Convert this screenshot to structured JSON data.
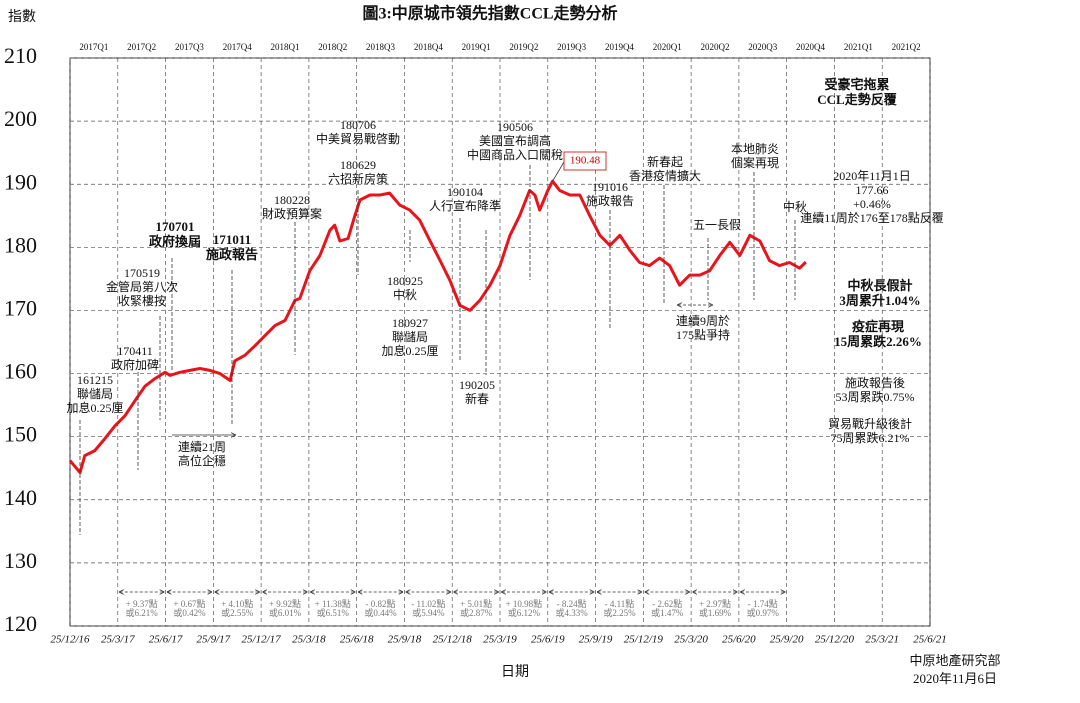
{
  "chart_data": {
    "type": "line",
    "title": "圖3:中原城市領先指數CCL走勢分析",
    "y_label": "指數",
    "x_label": "日期",
    "source": [
      "中原地產研究部",
      "2020年11月6日"
    ],
    "ylim": [
      120,
      210
    ],
    "yticks": [
      120,
      130,
      140,
      150,
      160,
      170,
      180,
      190,
      200,
      210
    ],
    "xlim": [
      0,
      18
    ],
    "xticks": [
      {
        "value": 0,
        "label": "25/12/16"
      },
      {
        "value": 1,
        "label": "25/3/17"
      },
      {
        "value": 2,
        "label": "25/6/17"
      },
      {
        "value": 3,
        "label": "25/9/17"
      },
      {
        "value": 4,
        "label": "25/12/17"
      },
      {
        "value": 5,
        "label": "25/3/18"
      },
      {
        "value": 6,
        "label": "25/6/18"
      },
      {
        "value": 7,
        "label": "25/9/18"
      },
      {
        "value": 8,
        "label": "25/12/18"
      },
      {
        "value": 9,
        "label": "25/3/19"
      },
      {
        "value": 10,
        "label": "25/6/19"
      },
      {
        "value": 11,
        "label": "25/9/19"
      },
      {
        "value": 12,
        "label": "25/12/19"
      },
      {
        "value": 13,
        "label": "25/3/20"
      },
      {
        "value": 14,
        "label": "25/6/20"
      },
      {
        "value": 15,
        "label": "25/9/20"
      },
      {
        "value": 16,
        "label": "25/12/20"
      },
      {
        "value": 17,
        "label": "25/3/21"
      },
      {
        "value": 18,
        "label": "25/6/21"
      }
    ],
    "quarters": [
      "2017Q1",
      "2017Q2",
      "2017Q3",
      "2017Q4",
      "2018Q1",
      "2018Q2",
      "2018Q3",
      "2018Q4",
      "2019Q1",
      "2019Q2",
      "2019Q3",
      "2019Q4",
      "2020Q1",
      "2020Q2",
      "2020Q3",
      "2020Q4",
      "2021Q1",
      "2021Q2"
    ],
    "grid": true,
    "series": [
      {
        "color": "#e8141c",
        "x": [
          0,
          0.21,
          0.31,
          0.52,
          0.73,
          0.94,
          1.15,
          1.36,
          1.57,
          1.78,
          1.99,
          2.09,
          2.3,
          2.51,
          2.72,
          2.93,
          3.14,
          3.35,
          3.45,
          3.66,
          3.87,
          4.08,
          4.29,
          4.5,
          4.71,
          4.81,
          5.02,
          5.23,
          5.44,
          5.54,
          5.65,
          5.82,
          5.96,
          6.07,
          6.28,
          6.49,
          6.69,
          6.9,
          7.11,
          7.32,
          7.53,
          7.74,
          7.95,
          8.16,
          8.37,
          8.58,
          8.79,
          9.0,
          9.21,
          9.41,
          9.62,
          9.73,
          9.83,
          10.0,
          10.1,
          10.25,
          10.46,
          10.67,
          10.88,
          11.09,
          11.3,
          11.51,
          11.72,
          11.92,
          12.13,
          12.34,
          12.55,
          12.76,
          12.97,
          13.18,
          13.39,
          13.6,
          13.81,
          14.02,
          14.23,
          14.44,
          14.64,
          14.85,
          15.06,
          15.27,
          15.4
        ],
        "values": [
          146.2,
          144.3,
          147,
          147.8,
          149.7,
          151.7,
          153.3,
          155.7,
          158,
          159.2,
          160.2,
          159.7,
          160.2,
          160.5,
          160.8,
          160.5,
          160,
          158.9,
          162,
          162.9,
          164.4,
          166,
          167.6,
          168.4,
          171.6,
          171.9,
          176.3,
          178.7,
          182.7,
          183.5,
          181,
          181.4,
          185,
          187.5,
          188.3,
          188.3,
          188.6,
          186.7,
          185.9,
          184.3,
          181.1,
          178,
          174.8,
          170.8,
          170,
          171.6,
          174,
          177.1,
          181.9,
          185,
          189,
          188.3,
          185.9,
          189,
          190.48,
          189,
          188.3,
          188.3,
          185,
          181.9,
          180.3,
          181.9,
          179.5,
          177.6,
          177.1,
          178.3,
          177.1,
          174,
          175.6,
          175.6,
          176.3,
          178.7,
          180.8,
          178.7,
          181.9,
          181,
          177.9,
          177.1,
          177.6,
          176.7,
          177.66
        ]
      }
    ],
    "peak_label": "190.48",
    "annotations": [
      [
        "161215",
        "聯儲局",
        "加息0.25厘"
      ],
      [
        "170411",
        "政府加碑"
      ],
      [
        "170519",
        "金管局第八次",
        "收緊樓按"
      ],
      [
        "170701",
        "政府換屆"
      ],
      [
        "171011",
        "施政報告"
      ],
      [
        "連續21周",
        "高位企穩"
      ],
      [
        "180228",
        "財政預算案"
      ],
      [
        "180706",
        "中美貿易戰啓動"
      ],
      [
        "180629",
        "六招新房策"
      ],
      [
        "180925",
        "中秋"
      ],
      [
        "180927",
        "聯儲局",
        "加息0.25厘"
      ],
      [
        "190104",
        "人行宣布降準"
      ],
      [
        "190205",
        "新春"
      ],
      [
        "190506",
        "美國宣布調高",
        "中國商品入口關稅"
      ],
      [
        "191016",
        "施政報告"
      ],
      [
        "新春起",
        "香港疫情擴大"
      ],
      [
        "五一長假"
      ],
      [
        "本地肺炎",
        "個案再現"
      ],
      [
        "中秋"
      ],
      [
        "連續9周於",
        "175點爭持"
      ],
      [
        "受豪宅拖累",
        "CCL走勢反覆"
      ],
      [
        "2020年11月1日",
        "177.66",
        "+0.46%",
        "連續11周於176至178點反覆"
      ],
      [
        "中秋長假計",
        "3周累升1.04%"
      ],
      [
        "疫症再現",
        "15周累跌2.26%"
      ],
      [
        "施政報告後",
        "53周累跌0.75%"
      ],
      [
        "貿易戰升級後計",
        "75周累跌6.21%"
      ]
    ],
    "period_changes": [
      [
        "+ 9.37點",
        "或6.21%"
      ],
      [
        "+ 0.67點",
        "或0.42%"
      ],
      [
        "+ 4.10點",
        "或2.55%"
      ],
      [
        "+ 9.92點",
        "或6.01%"
      ],
      [
        "+ 11.38點",
        "或6.51%"
      ],
      [
        "- 0.82點",
        "或0.44%"
      ],
      [
        "- 11.02點",
        "或5.94%"
      ],
      [
        "+ 5.01點",
        "或2.87%"
      ],
      [
        "+ 10.98點",
        "或6.12%"
      ],
      [
        "- 8.24點",
        "或4.33%"
      ],
      [
        "- 4.11點",
        "或2.25%"
      ],
      [
        "- 2.62點",
        "或1.47%"
      ],
      [
        "+ 2.97點",
        "或1.69%"
      ],
      [
        "- 1.74點",
        "或0.97%"
      ]
    ]
  }
}
